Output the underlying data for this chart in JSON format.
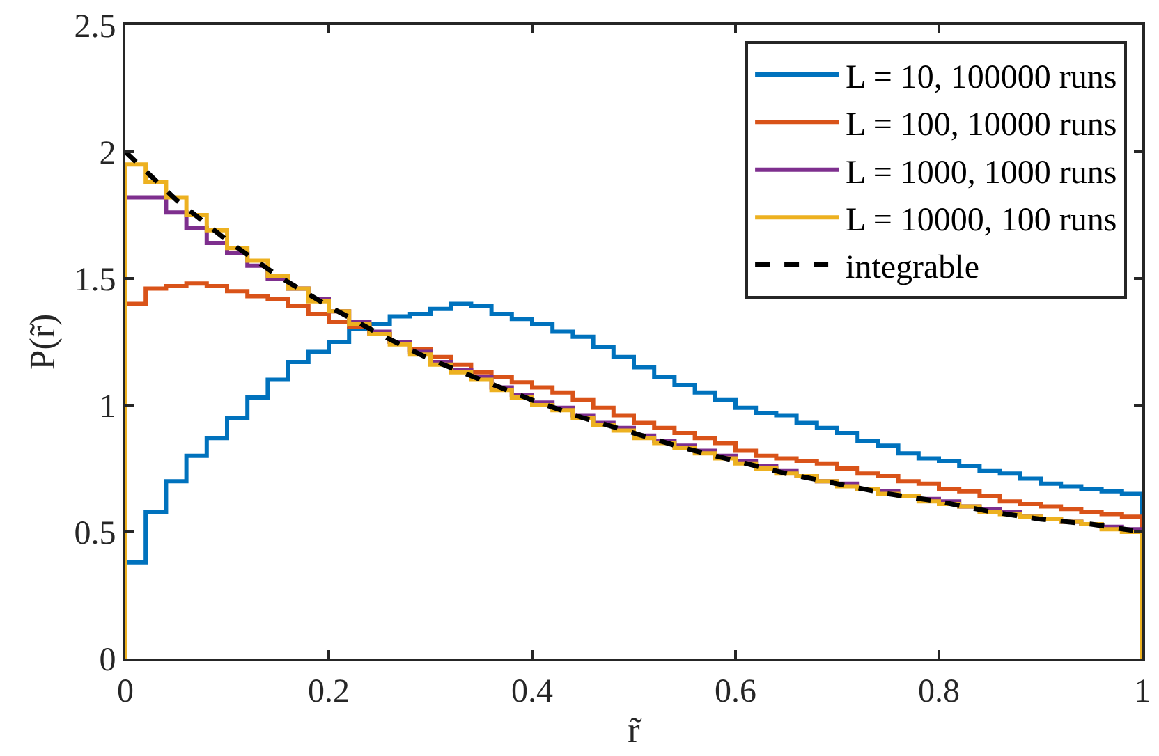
{
  "chart_data": {
    "type": "histogram",
    "xlabel": "r̃",
    "ylabel": "P(r̃)",
    "xlim": [
      0,
      1
    ],
    "ylim": [
      0,
      2.5
    ],
    "xticks": [
      0,
      0.2,
      0.4,
      0.6,
      0.8,
      1
    ],
    "yticks": [
      0,
      0.5,
      1,
      1.5,
      2,
      2.5
    ],
    "grid": false,
    "legend": "top right",
    "bins": [
      0,
      0.02,
      0.04,
      0.06,
      0.08,
      0.1,
      0.12,
      0.14,
      0.16,
      0.18,
      0.2,
      0.22,
      0.24,
      0.26,
      0.28,
      0.3,
      0.32,
      0.34,
      0.36,
      0.38,
      0.4,
      0.42,
      0.44,
      0.46,
      0.48,
      0.5,
      0.52,
      0.54,
      0.56,
      0.58,
      0.6,
      0.62,
      0.64,
      0.66,
      0.68,
      0.7,
      0.72,
      0.74,
      0.76,
      0.78,
      0.8,
      0.82,
      0.84,
      0.86,
      0.88,
      0.9,
      0.92,
      0.94,
      0.96,
      0.98,
      1
    ],
    "series": [
      {
        "name": "L = 10, 100000 runs",
        "color": "#0072bd",
        "values": [
          0.38,
          0.58,
          0.7,
          0.8,
          0.87,
          0.95,
          1.03,
          1.1,
          1.17,
          1.21,
          1.25,
          1.3,
          1.32,
          1.35,
          1.36,
          1.38,
          1.4,
          1.39,
          1.36,
          1.34,
          1.32,
          1.29,
          1.27,
          1.23,
          1.19,
          1.15,
          1.11,
          1.08,
          1.05,
          1.02,
          0.99,
          0.97,
          0.96,
          0.93,
          0.91,
          0.89,
          0.86,
          0.84,
          0.81,
          0.79,
          0.78,
          0.76,
          0.74,
          0.73,
          0.71,
          0.69,
          0.68,
          0.67,
          0.66,
          0.65
        ]
      },
      {
        "name": "L = 100, 10000 runs",
        "color": "#d95319",
        "values": [
          1.4,
          1.46,
          1.47,
          1.48,
          1.47,
          1.45,
          1.43,
          1.42,
          1.39,
          1.36,
          1.33,
          1.31,
          1.28,
          1.25,
          1.22,
          1.19,
          1.16,
          1.13,
          1.11,
          1.09,
          1.07,
          1.05,
          1.02,
          0.99,
          0.96,
          0.93,
          0.91,
          0.89,
          0.87,
          0.85,
          0.82,
          0.8,
          0.79,
          0.78,
          0.77,
          0.75,
          0.73,
          0.72,
          0.7,
          0.69,
          0.67,
          0.66,
          0.64,
          0.62,
          0.61,
          0.6,
          0.59,
          0.58,
          0.57,
          0.56
        ]
      },
      {
        "name": "L = 1000, 1000 runs",
        "color": "#7e2f8e",
        "values": [
          1.82,
          1.82,
          1.76,
          1.7,
          1.64,
          1.6,
          1.55,
          1.5,
          1.46,
          1.42,
          1.37,
          1.33,
          1.29,
          1.25,
          1.21,
          1.17,
          1.14,
          1.11,
          1.07,
          1.04,
          1.01,
          0.99,
          0.96,
          0.93,
          0.91,
          0.88,
          0.86,
          0.84,
          0.82,
          0.8,
          0.78,
          0.76,
          0.74,
          0.72,
          0.7,
          0.69,
          0.67,
          0.66,
          0.64,
          0.63,
          0.62,
          0.6,
          0.59,
          0.58,
          0.56,
          0.55,
          0.54,
          0.53,
          0.52,
          0.51
        ]
      },
      {
        "name": "L = 10000, 100 runs",
        "color": "#edb120",
        "values": [
          1.95,
          1.88,
          1.82,
          1.75,
          1.69,
          1.62,
          1.57,
          1.51,
          1.46,
          1.41,
          1.37,
          1.32,
          1.28,
          1.24,
          1.2,
          1.16,
          1.13,
          1.1,
          1.06,
          1.03,
          1,
          0.98,
          0.95,
          0.92,
          0.9,
          0.87,
          0.85,
          0.83,
          0.81,
          0.79,
          0.77,
          0.75,
          0.73,
          0.72,
          0.7,
          0.68,
          0.67,
          0.65,
          0.64,
          0.62,
          0.61,
          0.6,
          0.58,
          0.57,
          0.56,
          0.55,
          0.54,
          0.53,
          0.51,
          0.5
        ]
      },
      {
        "name": "integrable",
        "type": "line",
        "line_style": "dashed",
        "color": "#000000",
        "x": [
          0,
          0.05,
          0.1,
          0.15,
          0.2,
          0.25,
          0.3,
          0.35,
          0.4,
          0.45,
          0.5,
          0.55,
          0.6,
          0.65,
          0.7,
          0.75,
          0.8,
          0.85,
          0.9,
          0.95,
          1
        ],
        "values": [
          2,
          1.81,
          1.65,
          1.51,
          1.39,
          1.28,
          1.18,
          1.1,
          1.02,
          0.95,
          0.89,
          0.83,
          0.78,
          0.73,
          0.69,
          0.65,
          0.62,
          0.58,
          0.55,
          0.53,
          0.5
        ]
      }
    ]
  }
}
